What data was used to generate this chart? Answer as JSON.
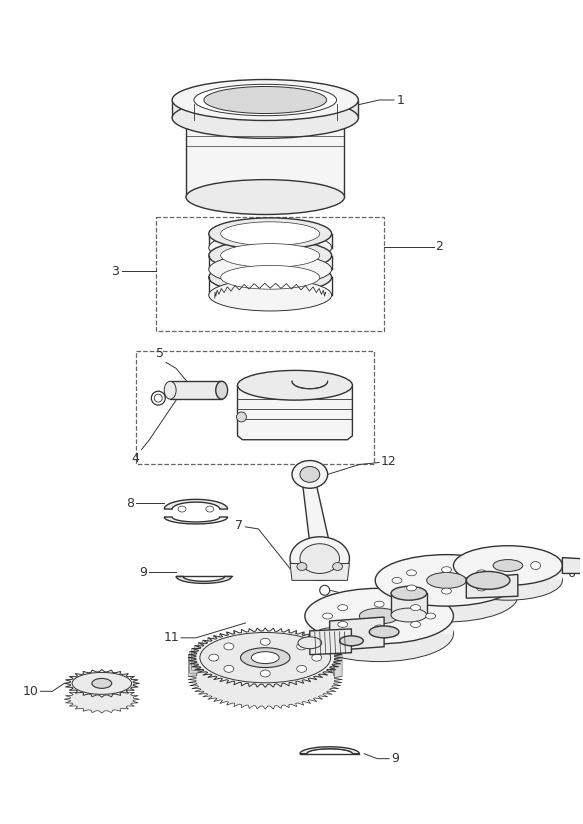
{
  "background_color": "#ffffff",
  "line_color": "#333333",
  "figsize": [
    5.83,
    8.24
  ],
  "dpi": 100
}
